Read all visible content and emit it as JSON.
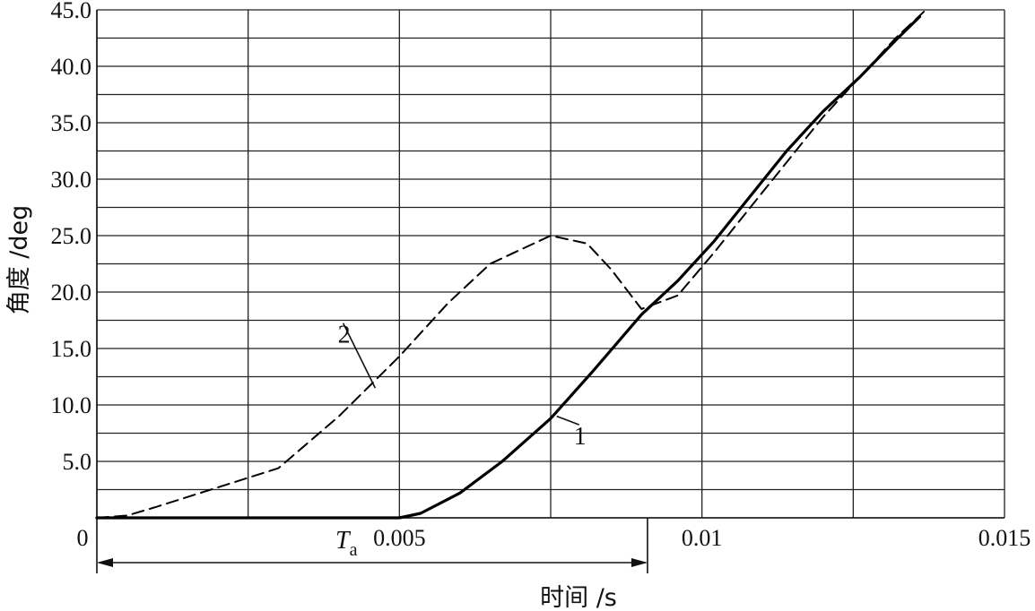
{
  "chart_data": {
    "type": "line",
    "xlabel": "时间 /s",
    "ylabel": "角度 /deg",
    "xlim": [
      0,
      0.015
    ],
    "ylim": [
      0,
      45
    ],
    "x_ticks": [
      0,
      0.005,
      0.01,
      0.015
    ],
    "x_tick_labels": [
      "0",
      "0.005",
      "0.01",
      "0.015"
    ],
    "x_gridlines": [
      0,
      0.0025,
      0.005,
      0.0075,
      0.01,
      0.0125,
      0.015
    ],
    "y_ticks": [
      5,
      10,
      15,
      20,
      25,
      30,
      35,
      40,
      45
    ],
    "y_tick_labels": [
      "5.0",
      "10.0",
      "15.0",
      "20.0",
      "25.0",
      "30.0",
      "35.0",
      "40.0",
      "45.0"
    ],
    "grid": true,
    "series": [
      {
        "name": "1",
        "style": "solid",
        "x": [
          0.0,
          0.002,
          0.004,
          0.005,
          0.00535,
          0.006,
          0.0067,
          0.0075,
          0.0082,
          0.009,
          0.0096,
          0.0102,
          0.0108,
          0.0114,
          0.012,
          0.0126,
          0.0132,
          0.0136
        ],
        "y": [
          0.0,
          0.0,
          0.0,
          0.0,
          0.4,
          2.2,
          5.0,
          8.8,
          13.0,
          18.0,
          21.0,
          24.5,
          28.5,
          32.5,
          36.0,
          39.0,
          42.3,
          44.4
        ]
      },
      {
        "name": "2",
        "style": "dashed",
        "x": [
          0.0,
          0.0005,
          0.001,
          0.002,
          0.003,
          0.004,
          0.005,
          0.0058,
          0.0065,
          0.0075,
          0.0081,
          0.0085,
          0.009,
          0.0096,
          0.0102,
          0.0108,
          0.0114,
          0.012,
          0.0126,
          0.0132,
          0.0137
        ],
        "y": [
          0.0,
          0.2,
          1.0,
          2.7,
          4.4,
          9.0,
          14.3,
          19.0,
          22.5,
          25.0,
          24.3,
          22.0,
          18.5,
          19.7,
          23.5,
          27.5,
          31.5,
          35.5,
          39.0,
          42.5,
          45.0
        ]
      }
    ],
    "annotations": [
      {
        "text": "1",
        "x": 0.008,
        "y": 6.5,
        "leader_to": [
          0.0076,
          9.0
        ]
      },
      {
        "text": "2",
        "x": 0.0041,
        "y": 15.5,
        "leader_to": [
          0.0046,
          11.5
        ]
      },
      {
        "text": "T",
        "subscript": "a",
        "x_from": 0.0,
        "x_to": 0.0091,
        "kind": "double-arrow"
      }
    ]
  }
}
